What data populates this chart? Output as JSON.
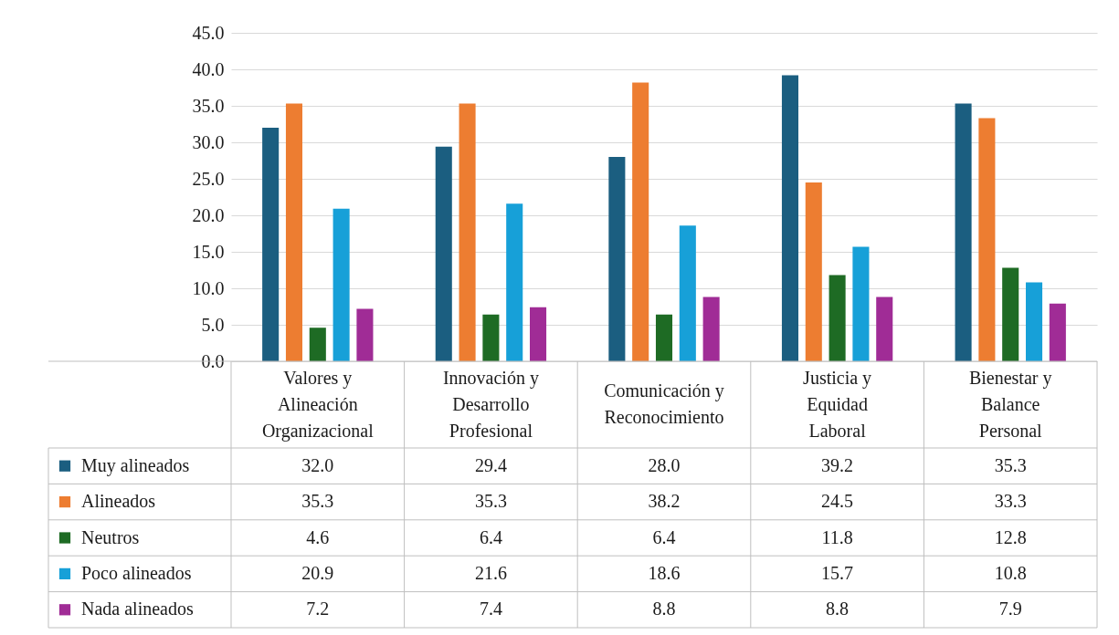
{
  "chart_data": {
    "type": "bar",
    "categories": [
      "Valores y Alineación Organizacional",
      "Innovación y Desarrollo Profesional",
      "Comunicación y Reconocimiento",
      "Justicia y Equidad Laboral",
      "Bienestar y Balance Personal"
    ],
    "series": [
      {
        "name": "Muy alineados",
        "color": "#1b5e80",
        "values": [
          32.0,
          29.4,
          28.0,
          39.2,
          35.3
        ],
        "value_labels": [
          "32.0",
          "29.4",
          "28.0",
          "39.2",
          "35.3"
        ]
      },
      {
        "name": "Alineados",
        "color": "#ed7d31",
        "values": [
          35.3,
          35.3,
          38.2,
          24.5,
          33.3
        ],
        "value_labels": [
          "35.3",
          "35.3",
          "38.2",
          "24.5",
          "33.3"
        ]
      },
      {
        "name": "Neutros",
        "color": "#1e6b24",
        "values": [
          4.6,
          6.4,
          6.4,
          11.8,
          12.8
        ],
        "value_labels": [
          "4.6",
          "6.4",
          "6.4",
          "11.8",
          "12.8"
        ]
      },
      {
        "name": "Poco alineados",
        "color": "#17a0d8",
        "values": [
          20.9,
          21.6,
          18.6,
          15.7,
          10.8
        ],
        "value_labels": [
          "20.9",
          "21.6",
          "18.6",
          "15.7",
          "10.8"
        ]
      },
      {
        "name": "Nada alineados",
        "color": "#a02c96",
        "values": [
          7.2,
          7.4,
          8.8,
          8.8,
          7.9
        ],
        "value_labels": [
          "7.2",
          "7.4",
          "8.8",
          "8.8",
          "7.9"
        ]
      }
    ],
    "ylim": [
      0,
      45
    ],
    "yticks": [
      {
        "value": 0,
        "label": "0.0"
      },
      {
        "value": 5,
        "label": "5.0"
      },
      {
        "value": 10,
        "label": "10.0"
      },
      {
        "value": 15,
        "label": "15.0"
      },
      {
        "value": 20,
        "label": "20.0"
      },
      {
        "value": 25,
        "label": "25.0"
      },
      {
        "value": 30,
        "label": "30.0"
      },
      {
        "value": 35,
        "label": "35.0"
      },
      {
        "value": 40,
        "label": "40.0"
      },
      {
        "value": 45,
        "label": "45.0"
      }
    ],
    "grid": "y",
    "legend": "bottom"
  }
}
